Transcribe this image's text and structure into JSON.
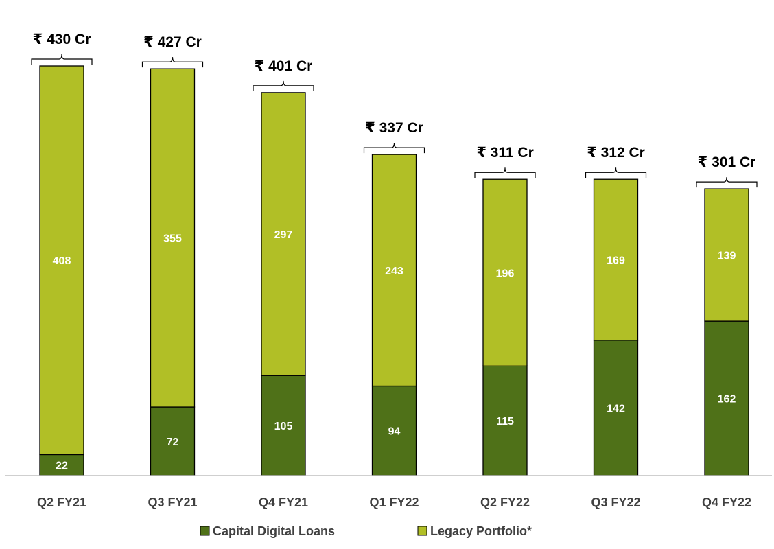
{
  "chart_data": {
    "type": "bar",
    "stacked": true,
    "categories": [
      "Q2 FY21",
      "Q3 FY21",
      "Q4 FY21",
      "Q1 FY22",
      "Q2 FY22",
      "Q3 FY22",
      "Q4 FY22"
    ],
    "series": [
      {
        "name": "Capital Digital Loans",
        "color": "#4f7118",
        "values": [
          22,
          72,
          105,
          94,
          115,
          142,
          162
        ]
      },
      {
        "name": "Legacy Portfolio*",
        "color": "#b1bf26",
        "values": [
          408,
          355,
          297,
          243,
          196,
          169,
          139
        ]
      }
    ],
    "totals": [
      "₹ 430 Cr",
      "₹ 427 Cr",
      "₹ 401 Cr",
      "₹ 337 Cr",
      "₹ 311 Cr",
      "₹ 312 Cr",
      "₹ 301 Cr"
    ],
    "ylim": [
      0,
      430
    ],
    "grid": false,
    "legend_position": "bottom",
    "title": "",
    "xlabel": "",
    "ylabel": ""
  }
}
